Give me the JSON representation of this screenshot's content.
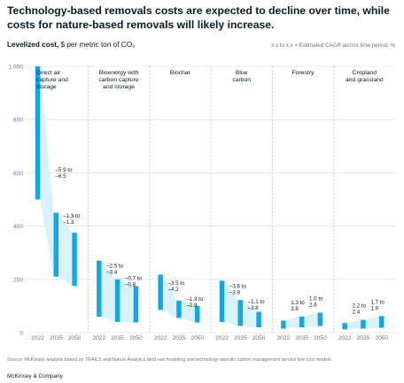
{
  "header": {
    "title": "Technology-based removals costs are expected to decline over time, while costs for nature-based removals will likely increase.",
    "subtitle_bold": "Levelized cost,",
    "subtitle_rest": " $ per metric ton of CO₂",
    "note": "x.x to x.x = Estimated CAGR across time period, %"
  },
  "footer": {
    "source": "Source: McKinsey analysis based on TRAILS and Nature Analytics land-use modeling and technology-specific carbon management service line cost models",
    "brand": "McKinsey & Company"
  },
  "colors": {
    "bar": "#11a7e8",
    "band": "#d8f1fb",
    "text": "#051c2c",
    "grid": "#d9d9d9",
    "sep": "#b5b5b5"
  },
  "chart_data": {
    "type": "bar",
    "subtype": "floating-range",
    "ylabel": "$ per metric ton of CO₂",
    "ylim": [
      0,
      1000
    ],
    "yticks": [
      0,
      200,
      400,
      600,
      800,
      1000
    ],
    "grid": true,
    "groups": [
      {
        "name": "Direct air capture and storage",
        "label_lines": [
          "Direct air",
          "capture and",
          "storage"
        ],
        "years": [
          "2022",
          "2035",
          "2050"
        ],
        "ranges": [
          [
            500,
            1000
          ],
          [
            210,
            450
          ],
          [
            175,
            375
          ]
        ],
        "cagr": [
          {
            "lines": [
              "–5.9 to",
              "–6.5"
            ]
          },
          {
            "lines": [
              "–1.3 to",
              "–1.3"
            ]
          }
        ]
      },
      {
        "name": "Bioenergy with carbon capture and storage",
        "label_lines": [
          "Bioenergy with",
          "carbon capture",
          "and storage"
        ],
        "years": [
          "2022",
          "2035",
          "2050"
        ],
        "ranges": [
          [
            60,
            270
          ],
          [
            40,
            200
          ],
          [
            38,
            175
          ]
        ],
        "cagr": [
          {
            "lines": [
              "–2.5 to",
              "–3.4"
            ]
          },
          {
            "lines": [
              "–0.7 to",
              "–0.8"
            ]
          }
        ]
      },
      {
        "name": "Biochar",
        "label_lines": [
          "Biochar"
        ],
        "years": [
          "2022",
          "2035",
          "2050"
        ],
        "ranges": [
          [
            85,
            218
          ],
          [
            55,
            120
          ],
          [
            38,
            100
          ]
        ],
        "cagr": [
          {
            "lines": [
              "–3.5 to",
              "–4.2"
            ]
          },
          {
            "lines": [
              "–1.3 to",
              "–2.8"
            ]
          }
        ]
      },
      {
        "name": "Blue carbon",
        "label_lines": [
          "Blue",
          "carbon"
        ],
        "years": [
          "2022",
          "2035",
          "2050"
        ],
        "ranges": [
          [
            40,
            195
          ],
          [
            25,
            122
          ],
          [
            20,
            78
          ]
        ],
        "cagr": [
          {
            "lines": [
              "–3.6 to",
              "–3.8"
            ]
          },
          {
            "lines": [
              "–1.1 to",
              "–3.8"
            ]
          }
        ]
      },
      {
        "name": "Forestry",
        "label_lines": [
          "Forestry"
        ],
        "years": [
          "2022",
          "2035",
          "2050"
        ],
        "ranges": [
          [
            15,
            45
          ],
          [
            20,
            60
          ],
          [
            25,
            75
          ]
        ],
        "cagr": [
          {
            "lines": [
              "1.3 to",
              "3.8"
            ]
          },
          {
            "lines": [
              "1.0 to",
              "2.8"
            ]
          }
        ]
      },
      {
        "name": "Cropland and grassland",
        "label_lines": [
          "Cropland",
          "and grassland"
        ],
        "years": [
          "2022",
          "2035",
          "2050"
        ],
        "ranges": [
          [
            12,
            36
          ],
          [
            15,
            48
          ],
          [
            18,
            62
          ]
        ],
        "cagr": [
          {
            "lines": [
              "2.2 to",
              "2.4"
            ]
          },
          {
            "lines": [
              "1.7 to",
              "1.9"
            ]
          }
        ]
      }
    ]
  }
}
